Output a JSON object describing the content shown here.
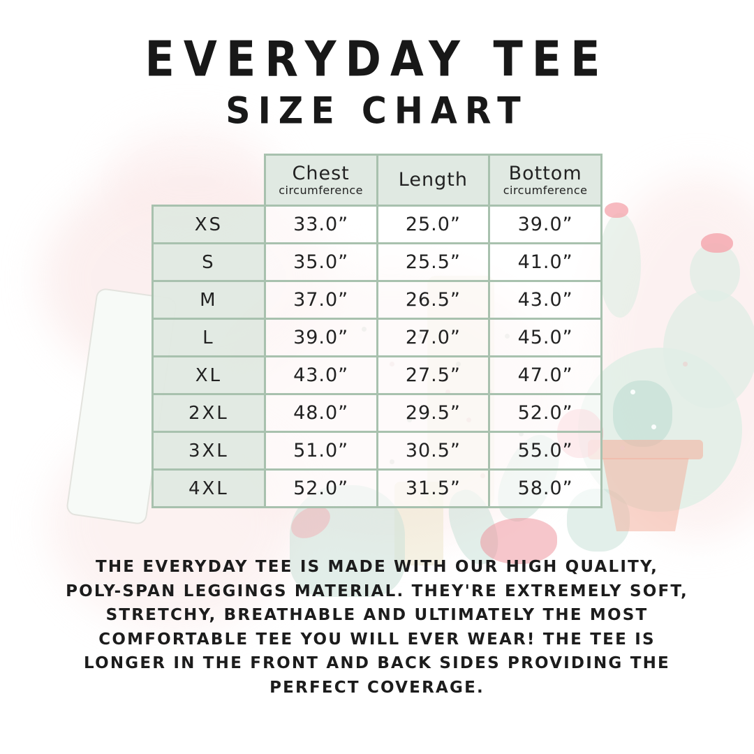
{
  "header": {
    "title": "EVERYDAY TEE",
    "subtitle": "SIZE CHART"
  },
  "chart_data": {
    "type": "table",
    "title": "EVERYDAY TEE SIZE CHART",
    "columns": [
      {
        "label": "Chest",
        "sublabel": "circumference"
      },
      {
        "label": "Length",
        "sublabel": ""
      },
      {
        "label": "Bottom",
        "sublabel": "circumference"
      }
    ],
    "rows": [
      {
        "size": "XS",
        "chest": "33.0”",
        "length": "25.0”",
        "bottom": "39.0”"
      },
      {
        "size": "S",
        "chest": "35.0”",
        "length": "25.5”",
        "bottom": "41.0”"
      },
      {
        "size": "M",
        "chest": "37.0”",
        "length": "26.5”",
        "bottom": "43.0”"
      },
      {
        "size": "L",
        "chest": "39.0”",
        "length": "27.0”",
        "bottom": "45.0”"
      },
      {
        "size": "XL",
        "chest": "43.0”",
        "length": "27.5”",
        "bottom": "47.0”"
      },
      {
        "size": "2XL",
        "chest": "48.0”",
        "length": "29.5”",
        "bottom": "52.0”"
      },
      {
        "size": "3XL",
        "chest": "51.0”",
        "length": "30.5”",
        "bottom": "55.0”"
      },
      {
        "size": "4XL",
        "chest": "52.0”",
        "length": "31.5”",
        "bottom": "58.0”"
      }
    ]
  },
  "description": {
    "lines": [
      "THE EVERYDAY TEE IS MADE WITH OUR HIGH QUALITY,",
      "POLY-SPAN LEGGINGS MATERIAL. THEY'RE EXTREMELY SOFT,",
      "STRETCHY, BREATHABLE AND ULTIMATELY THE MOST",
      "COMFORTABLE TEE YOU WILL EVER WEAR! THE TEE IS",
      "LONGER IN THE FRONT AND BACK SIDES PROVIDING THE",
      "PERFECT COVERAGE."
    ]
  },
  "colors": {
    "table_border": "#a8c1ae",
    "header_bg": "#e0e9e2",
    "text": "#212121",
    "watermark_pink": "#f9e3e2",
    "watermark_sage": "#e1eee6",
    "watermark_teal": "#c5e0d5",
    "watermark_terracotta": "#f2b2a0",
    "watermark_flower_pink": "#f5aab3"
  }
}
